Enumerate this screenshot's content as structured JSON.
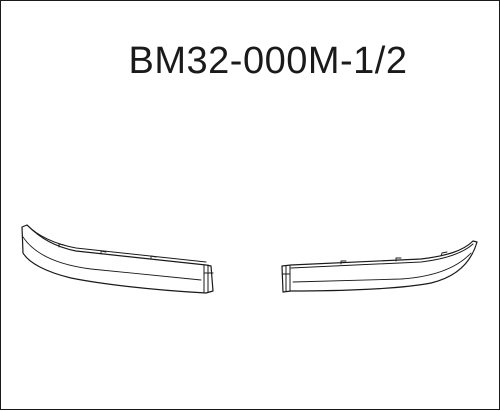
{
  "drawing": {
    "part_number": "BM32-000M-1/2",
    "parts": [
      {
        "name": "left-trim-strip",
        "side": "left"
      },
      {
        "name": "right-trim-strip",
        "side": "right"
      }
    ],
    "line_color": "#1a1a1a",
    "background_color": "#ffffff"
  }
}
